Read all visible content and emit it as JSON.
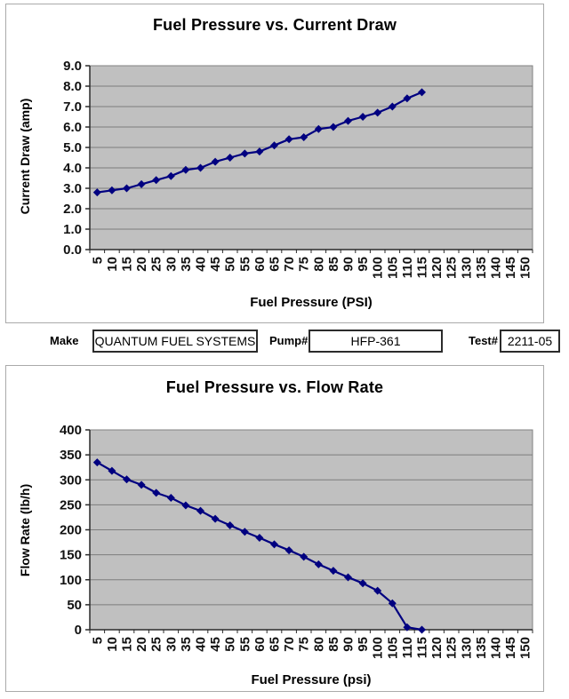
{
  "info_bar": {
    "make_label": "Make",
    "make_value": "QUANTUM FUEL SYSTEMS",
    "pump_label": "Pump#",
    "pump_value": "HFP-361",
    "test_label": "Test#",
    "test_value": "2211-05"
  },
  "style": {
    "page_bg": "#ffffff",
    "plot_bg": "#c0c0c0",
    "grid_color": "#7d7d7d",
    "plot_border": "#808080",
    "axis_color": "#2b2b2b",
    "line_color": "#000080",
    "frame_border": "#aaaaaa",
    "text_color": "#111111"
  },
  "chart_data": [
    {
      "type": "line",
      "title": "Fuel Pressure vs. Current Draw",
      "xlabel": "Fuel Pressure (PSI)",
      "ylabel": "Current Draw (amp)",
      "categories": [
        5,
        10,
        15,
        20,
        25,
        30,
        35,
        40,
        45,
        50,
        55,
        60,
        65,
        70,
        75,
        80,
        85,
        90,
        95,
        100,
        105,
        110,
        115,
        120,
        125,
        130,
        135,
        140,
        145,
        150
      ],
      "x": [
        5,
        10,
        15,
        20,
        25,
        30,
        35,
        40,
        45,
        50,
        55,
        60,
        65,
        70,
        75,
        80,
        85,
        90,
        95,
        100,
        105,
        110,
        115
      ],
      "values": [
        2.8,
        2.9,
        3.0,
        3.2,
        3.4,
        3.6,
        3.9,
        4.0,
        4.3,
        4.5,
        4.7,
        4.8,
        5.1,
        5.4,
        5.5,
        5.9,
        6.0,
        6.3,
        6.5,
        6.7,
        7.0,
        7.4,
        7.7
      ],
      "ylim": [
        0,
        9
      ],
      "ytick_step": 1,
      "ytick_decimals": 1,
      "grid": true,
      "legend": "none",
      "marker": "diamond"
    },
    {
      "type": "line",
      "title": "Fuel Pressure vs. Flow Rate",
      "xlabel": "Fuel Pressure (psi)",
      "ylabel": "Flow Rate (lb/h)",
      "categories": [
        5,
        10,
        15,
        20,
        25,
        30,
        35,
        40,
        45,
        50,
        55,
        60,
        65,
        70,
        75,
        80,
        85,
        90,
        95,
        100,
        105,
        110,
        115,
        120,
        125,
        130,
        135,
        140,
        145,
        150
      ],
      "x": [
        5,
        10,
        15,
        20,
        25,
        30,
        35,
        40,
        45,
        50,
        55,
        60,
        65,
        70,
        75,
        80,
        85,
        90,
        95,
        100,
        105,
        110,
        115
      ],
      "values": [
        335,
        318,
        301,
        290,
        274,
        264,
        249,
        238,
        222,
        209,
        196,
        184,
        171,
        159,
        146,
        131,
        118,
        105,
        93,
        78,
        53,
        5,
        0
      ],
      "ylim": [
        0,
        400
      ],
      "ytick_step": 50,
      "ytick_decimals": 0,
      "grid": true,
      "legend": "none",
      "marker": "diamond"
    }
  ]
}
